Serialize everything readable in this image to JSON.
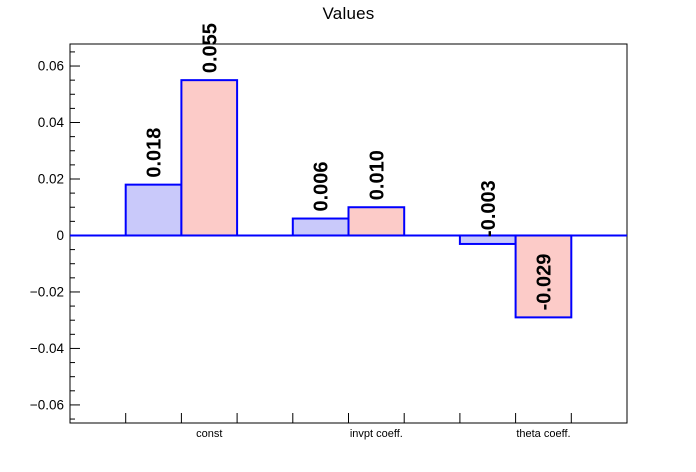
{
  "chart_data": {
    "type": "bar",
    "title": "Values",
    "categories": [
      "const",
      "invpt coeff.",
      "theta coeff."
    ],
    "series": [
      {
        "name": "blue",
        "fill": "#c9c9fa",
        "values": [
          0.018,
          0.006,
          -0.003
        ],
        "labels": [
          "0.018",
          "0.006",
          "-0.003"
        ],
        "bins": [
          1,
          4,
          7
        ]
      },
      {
        "name": "pink",
        "fill": "#fccbc8",
        "values": [
          0.055,
          0.01,
          -0.029
        ],
        "labels": [
          "0.055",
          "0.010",
          "-0.029"
        ],
        "bins": [
          2,
          5,
          8
        ]
      }
    ],
    "category_bins": [
      2,
      5,
      8
    ],
    "n_bins": 10,
    "outline_color": "#0000ff",
    "zero_line_color": "#0000ff",
    "frame_color": "#000000",
    "text_color": "#000000",
    "ylim": [
      -0.0664,
      0.0678
    ],
    "ytick_major": [
      -0.06,
      -0.04,
      -0.02,
      0,
      0.02,
      0.04,
      0.06
    ],
    "ytick_labels": [
      "−0.06",
      "−0.04",
      "−0.02",
      "0",
      "0.02",
      "0.04",
      "0.06"
    ],
    "ytick_minor_step": 0.005,
    "grid": false,
    "legend": false,
    "xlabel": "",
    "ylabel": ""
  }
}
